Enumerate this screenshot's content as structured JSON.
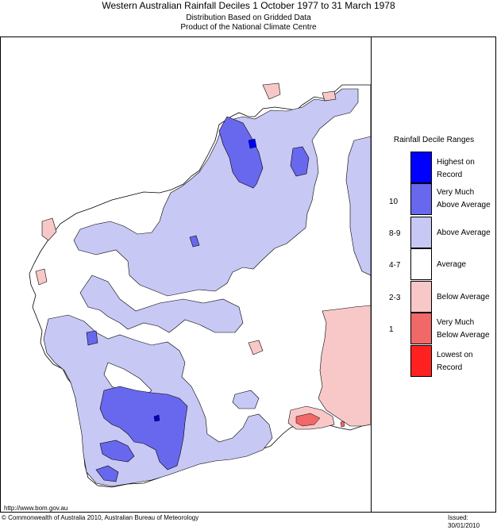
{
  "header": {
    "title": "Western Australian Rainfall Deciles     1 October 1977 to 31 March 1978",
    "subtitle_1": "Distribution Based on Gridded Data",
    "subtitle_2": "Product of the National Climate Centre"
  },
  "legend": {
    "title": "Rainfall Decile Ranges",
    "items": [
      {
        "label": "Highest on Record",
        "decile": "",
        "color": "#0000ff"
      },
      {
        "label": "Very Much Above Average",
        "decile": "10",
        "color": "#6868ee"
      },
      {
        "label": "Above Average",
        "decile": "8-9",
        "color": "#c8c8f5"
      },
      {
        "label": "Average",
        "decile": "4-7",
        "color": "#ffffff"
      },
      {
        "label": "Below Average",
        "decile": "2-3",
        "color": "#f8c8c8"
      },
      {
        "label": "Very Much Below Average",
        "decile": "1",
        "color": "#f06868"
      },
      {
        "label": "Lowest on Record",
        "decile": "",
        "color": "#ff2020"
      }
    ]
  },
  "footer": {
    "url": "http://www.bom.gov.au",
    "copyright": "© Commonwealth of Australia 2010, Australian Bureau of Meteorology",
    "issued": "Issued: 30/01/2010"
  }
}
